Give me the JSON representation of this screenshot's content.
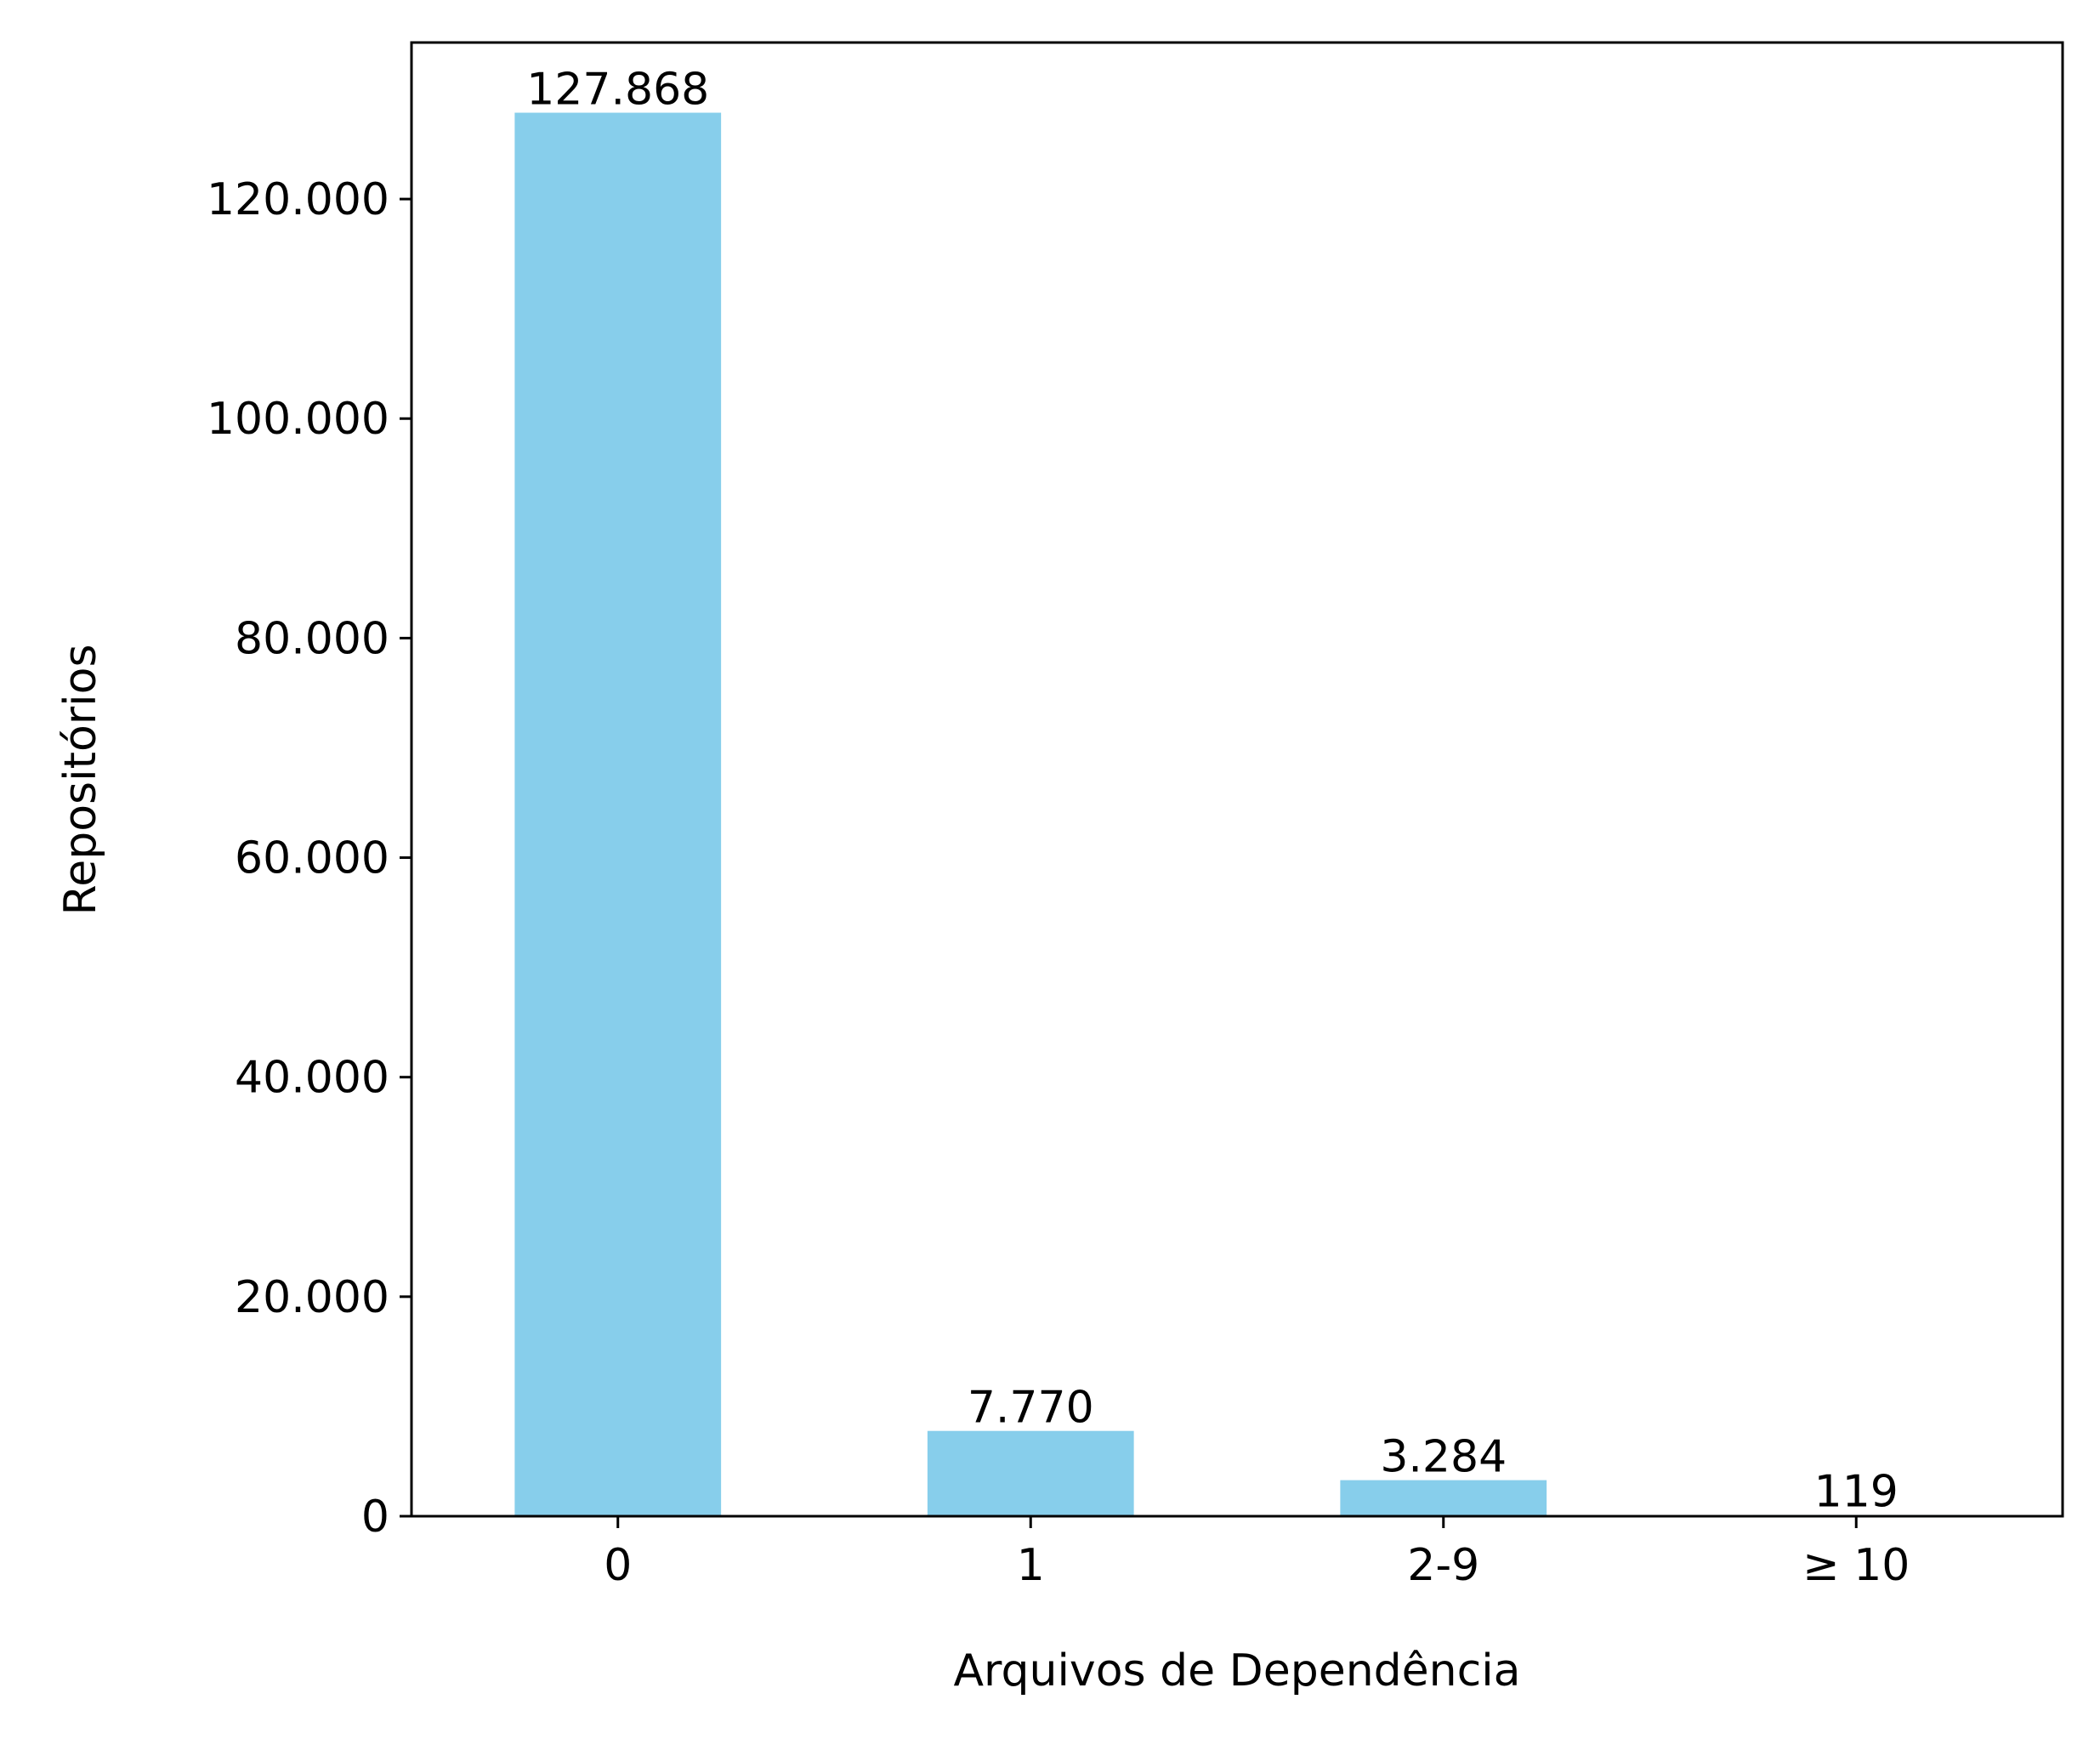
{
  "chart_data": {
    "type": "bar",
    "categories": [
      "0",
      "1",
      "2-9",
      "≥ 10"
    ],
    "values": [
      127868,
      7770,
      3284,
      119
    ],
    "data_labels": [
      "127.868",
      "7.770",
      "3.284",
      "119"
    ],
    "xlabel": "Arquivos de Dependência",
    "ylabel": "Repositórios",
    "ylim": [
      0,
      134262
    ],
    "yticks": [
      0,
      20000,
      40000,
      60000,
      80000,
      100000,
      120000
    ],
    "ytick_labels": [
      "0",
      "20.000",
      "40.000",
      "60.000",
      "80.000",
      "100.000",
      "120.000"
    ],
    "bar_color": "#87CEEB",
    "grid": false,
    "legend": "none"
  }
}
